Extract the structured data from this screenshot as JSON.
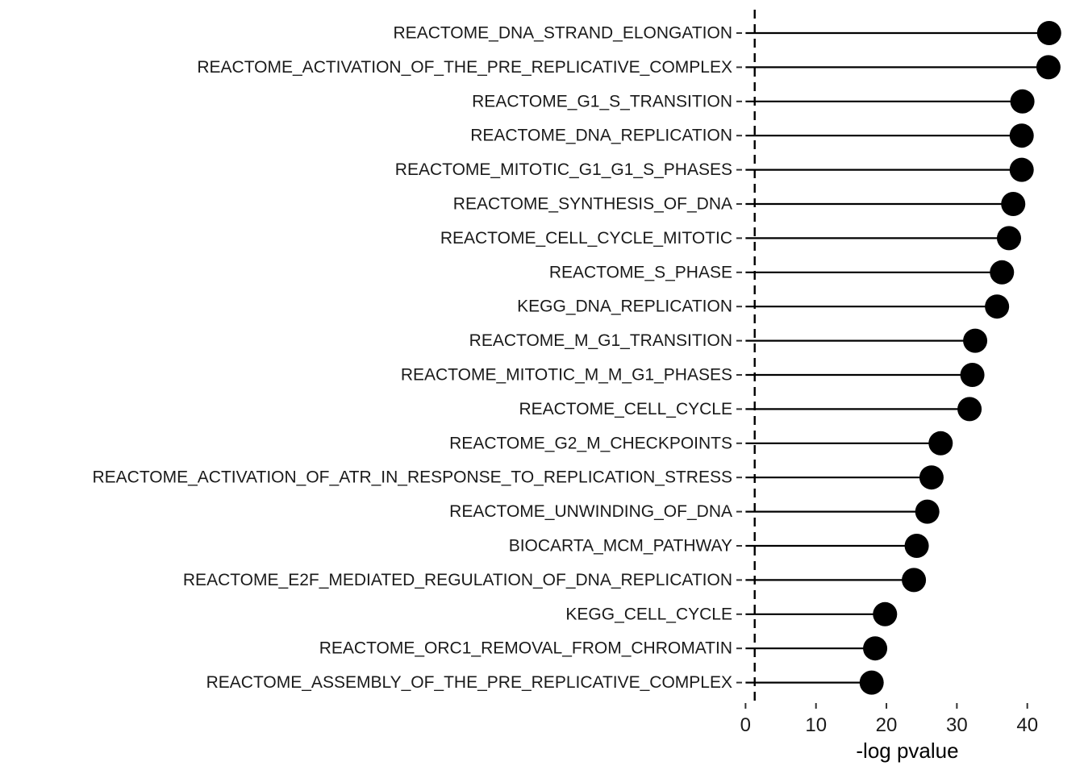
{
  "chart_data": {
    "type": "lollipop",
    "xlabel": "-log pvalue",
    "ylabel": "",
    "xlim": [
      -0.5,
      44.5
    ],
    "x_ticks": [
      0,
      10,
      20,
      30,
      40
    ],
    "x_tick_labels": [
      "0",
      "10",
      "20",
      "30",
      "40"
    ],
    "reference_line": {
      "x": 1.3,
      "style": "dashed"
    },
    "grid": false,
    "legend": "none",
    "colors": {
      "point": "#000000",
      "stem": "#000000",
      "text": "#1a1a1a"
    },
    "categories": [
      "REACTOME_DNA_STRAND_ELONGATION",
      "REACTOME_ACTIVATION_OF_THE_PRE_REPLICATIVE_COMPLEX",
      "REACTOME_G1_S_TRANSITION",
      "REACTOME_DNA_REPLICATION",
      "REACTOME_MITOTIC_G1_G1_S_PHASES",
      "REACTOME_SYNTHESIS_OF_DNA",
      "REACTOME_CELL_CYCLE_MITOTIC",
      "REACTOME_S_PHASE",
      "KEGG_DNA_REPLICATION",
      "REACTOME_M_G1_TRANSITION",
      "REACTOME_MITOTIC_M_M_G1_PHASES",
      "REACTOME_CELL_CYCLE",
      "REACTOME_G2_M_CHECKPOINTS",
      "REACTOME_ACTIVATION_OF_ATR_IN_RESPONSE_TO_REPLICATION_STRESS",
      "REACTOME_UNWINDING_OF_DNA",
      "BIOCARTA_MCM_PATHWAY",
      "REACTOME_E2F_MEDIATED_REGULATION_OF_DNA_REPLICATION",
      "KEGG_CELL_CYCLE",
      "REACTOME_ORC1_REMOVAL_FROM_CHROMATIN",
      "REACTOME_ASSEMBLY_OF_THE_PRE_REPLICATIVE_COMPLEX"
    ],
    "values": [
      43.1,
      43.0,
      39.3,
      39.2,
      39.2,
      38.0,
      37.4,
      36.4,
      35.7,
      32.6,
      32.2,
      31.8,
      27.7,
      26.4,
      25.8,
      24.3,
      23.9,
      19.8,
      18.4,
      17.9
    ]
  }
}
